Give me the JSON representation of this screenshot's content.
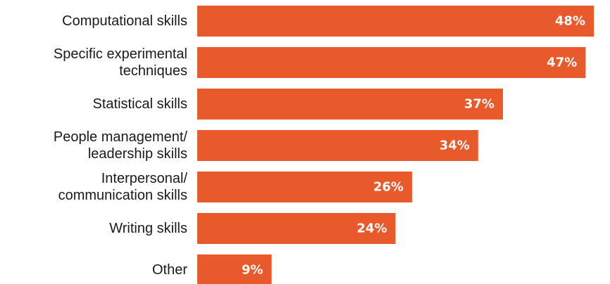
{
  "chart_data": {
    "type": "bar",
    "orientation": "horizontal",
    "categories": [
      [
        "Computational skills"
      ],
      [
        "Specific experimental",
        "techniques"
      ],
      [
        "Statistical skills"
      ],
      [
        "People management/",
        "leadership skills"
      ],
      [
        "Interpersonal/",
        "communication skills"
      ],
      [
        "Writing skills"
      ],
      [
        "Other"
      ]
    ],
    "values": [
      48,
      47,
      37,
      34,
      26,
      24,
      9
    ],
    "value_labels": [
      "48%",
      "47%",
      "37%",
      "34%",
      "26%",
      "24%",
      "9%"
    ],
    "unit": "%",
    "xlim": [
      0,
      48
    ],
    "grid": false,
    "legend": "none",
    "colors": {
      "bar": "#E8592B",
      "value_text": "#ffffff",
      "category_text": "#1a1a1a"
    }
  }
}
